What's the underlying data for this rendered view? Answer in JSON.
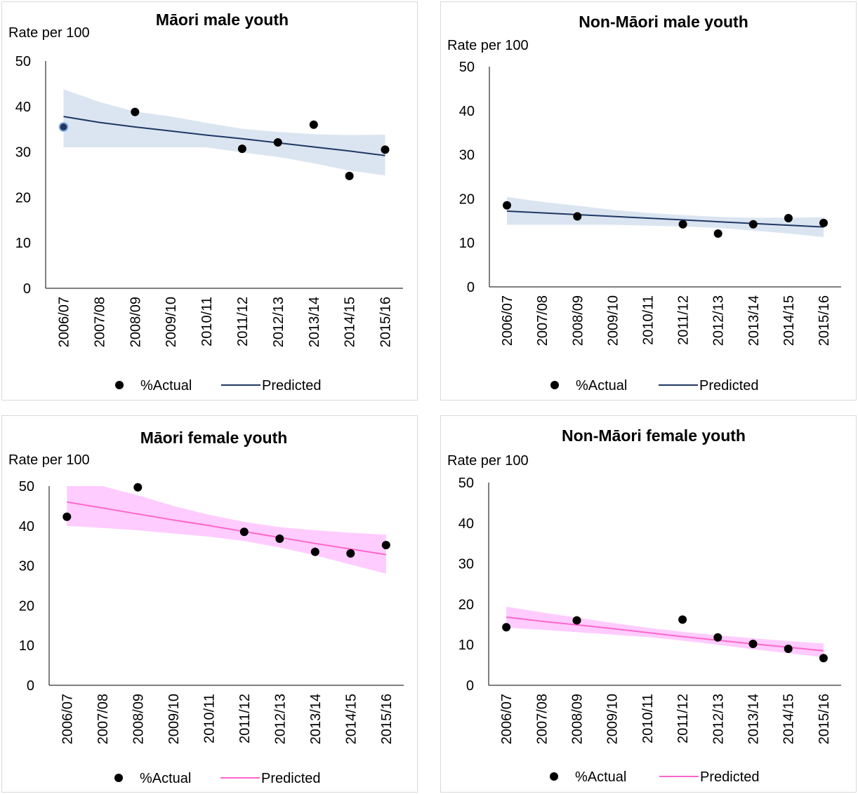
{
  "chart_data": [
    {
      "type": "scatter",
      "title": "Māori male youth",
      "ylabel": "Rate per 100",
      "categories": [
        "2006/07",
        "2007/08",
        "2008/09",
        "2009/10",
        "2010/11",
        "2011/12",
        "2012/13",
        "2013/14",
        "2014/15",
        "2015/16"
      ],
      "ylim": [
        0,
        50
      ],
      "yticks": [
        0,
        10,
        20,
        30,
        40,
        50
      ],
      "grid": false,
      "legend": "bottom",
      "series": [
        {
          "name": "%Actual",
          "kind": "points",
          "color": "#000000",
          "values": [
            35.5,
            null,
            38.8,
            null,
            null,
            30.7,
            32.1,
            36.0,
            24.7,
            30.5
          ]
        },
        {
          "name": "Predicted",
          "kind": "line",
          "color": "#1f3864",
          "values": [
            37.8,
            36.5,
            35.5,
            34.6,
            33.7,
            32.9,
            32.0,
            31.1,
            30.2,
            29.2
          ]
        },
        {
          "kind": "band",
          "color": "#dbe5f1",
          "upper": [
            43.8,
            41.0,
            38.9,
            37.8,
            36.4,
            35.1,
            34.4,
            33.9,
            33.7,
            33.8
          ],
          "lower": [
            31.0,
            31.0,
            31.0,
            31.0,
            31.0,
            29.9,
            28.9,
            27.5,
            25.9,
            24.8
          ]
        }
      ]
    },
    {
      "type": "scatter",
      "title": "Non-Māori male youth",
      "ylabel": "Rate per 100",
      "categories": [
        "2006/07",
        "2007/08",
        "2008/09",
        "2009/10",
        "2010/11",
        "2011/12",
        "2012/13",
        "2013/14",
        "2014/15",
        "2015/16"
      ],
      "ylim": [
        0,
        50
      ],
      "yticks": [
        0,
        10,
        20,
        30,
        40,
        50
      ],
      "grid": false,
      "legend": "bottom",
      "series": [
        {
          "name": "%Actual",
          "kind": "points",
          "color": "#000000",
          "values": [
            18.5,
            null,
            16.0,
            null,
            null,
            14.2,
            12.1,
            14.2,
            15.6,
            14.5
          ]
        },
        {
          "name": "Predicted",
          "kind": "line",
          "color": "#1f3864",
          "values": [
            17.2,
            16.8,
            16.4,
            16.0,
            15.6,
            15.2,
            14.8,
            14.4,
            14.0,
            13.6
          ]
        },
        {
          "kind": "band",
          "color": "#dbe5f1",
          "upper": [
            20.4,
            19.3,
            18.4,
            17.5,
            16.8,
            16.3,
            15.9,
            15.7,
            15.7,
            15.8
          ],
          "lower": [
            14.1,
            14.1,
            14.1,
            14.1,
            13.9,
            13.7,
            13.4,
            12.8,
            12.1,
            11.3
          ]
        }
      ]
    },
    {
      "type": "scatter",
      "title": "Māori female youth",
      "ylabel": "Rate per 100",
      "categories": [
        "2006/07",
        "2007/08",
        "2008/09",
        "2009/10",
        "2010/11",
        "2011/12",
        "2012/13",
        "2013/14",
        "2014/15",
        "2015/16"
      ],
      "ylim": [
        0,
        50
      ],
      "yticks": [
        0,
        10,
        20,
        30,
        40,
        50
      ],
      "grid": false,
      "legend": "bottom",
      "series": [
        {
          "name": "%Actual",
          "kind": "points",
          "color": "#000000",
          "values": [
            42.3,
            null,
            49.7,
            null,
            null,
            38.5,
            36.8,
            33.5,
            33.1,
            35.2
          ]
        },
        {
          "name": "Predicted",
          "kind": "line",
          "color": "#ff66cc",
          "values": [
            46.0,
            44.5,
            43.0,
            41.5,
            40.1,
            38.6,
            37.1,
            35.6,
            34.2,
            32.8
          ]
        },
        {
          "kind": "band",
          "color": "#ffccff",
          "upper": [
            50.0,
            50.0,
            47.7,
            45.0,
            42.8,
            41.0,
            39.7,
            38.9,
            38.3,
            37.8
          ],
          "lower": [
            40.0,
            39.5,
            38.9,
            38.1,
            37.3,
            36.2,
            34.6,
            32.6,
            30.3,
            28.0
          ]
        }
      ]
    },
    {
      "type": "scatter",
      "title": "Non-Māori female youth",
      "ylabel": "Rate per 100",
      "categories": [
        "2006/07",
        "2007/08",
        "2008/09",
        "2009/10",
        "2010/11",
        "2011/12",
        "2012/13",
        "2013/14",
        "2014/15",
        "2015/16"
      ],
      "ylim": [
        0,
        50
      ],
      "yticks": [
        0,
        10,
        20,
        30,
        40,
        50
      ],
      "grid": false,
      "legend": "bottom",
      "series": [
        {
          "name": "%Actual",
          "kind": "points",
          "color": "#000000",
          "values": [
            14.3,
            null,
            16.0,
            null,
            null,
            16.2,
            11.8,
            10.2,
            9.0,
            6.7
          ]
        },
        {
          "name": "Predicted",
          "kind": "line",
          "color": "#ff66cc",
          "values": [
            16.8,
            15.8,
            14.9,
            14.0,
            13.0,
            12.0,
            11.1,
            10.2,
            9.4,
            8.5
          ]
        },
        {
          "kind": "band",
          "color": "#ffccff",
          "upper": [
            19.4,
            18.0,
            16.7,
            15.4,
            14.2,
            13.2,
            12.3,
            11.6,
            10.9,
            10.3
          ],
          "lower": [
            14.2,
            13.7,
            13.1,
            12.5,
            11.9,
            11.0,
            10.0,
            8.9,
            7.9,
            6.9
          ]
        }
      ]
    }
  ]
}
